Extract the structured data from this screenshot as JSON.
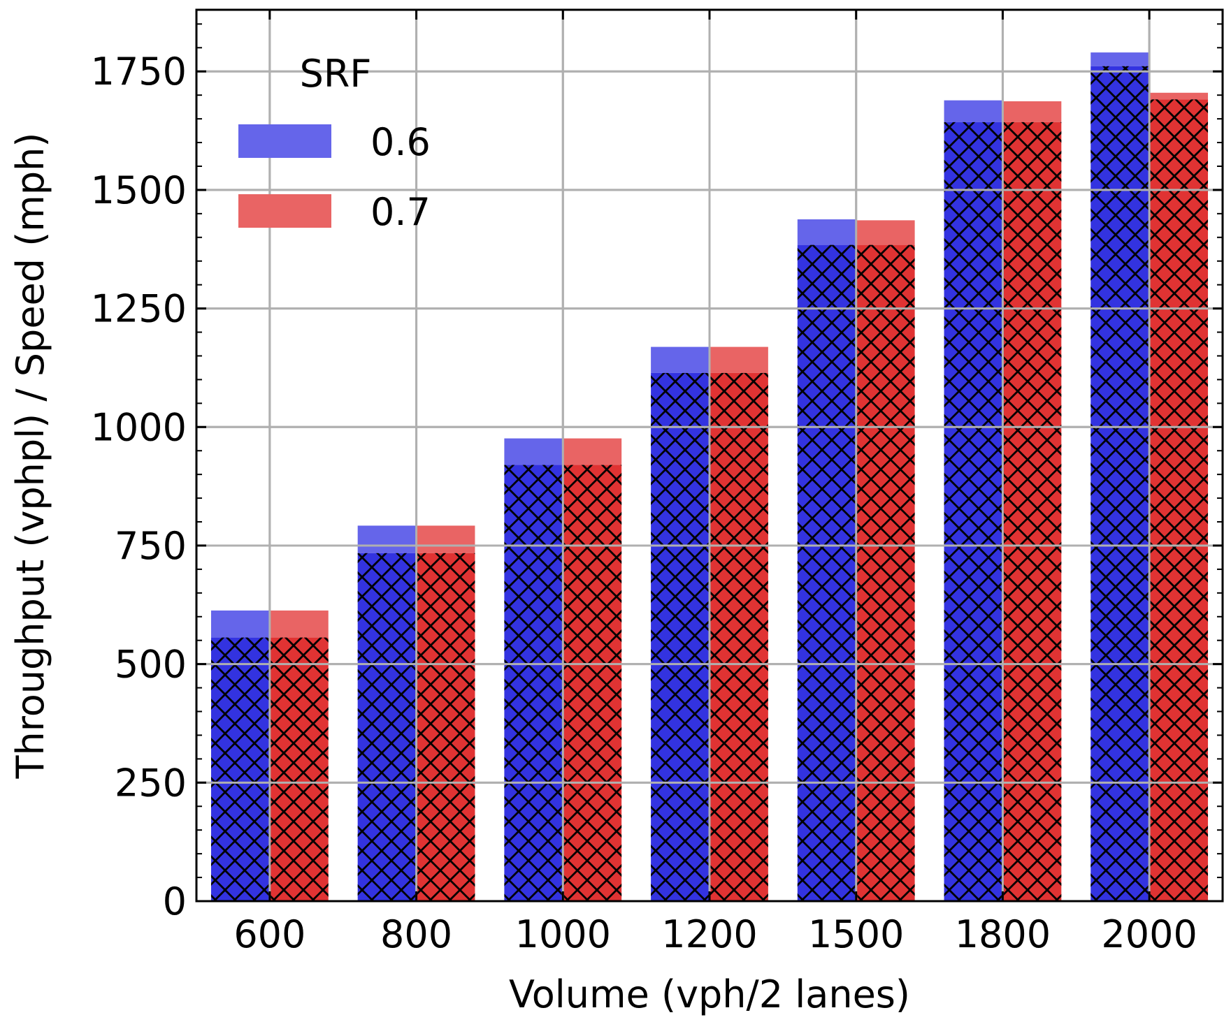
{
  "chart_data": {
    "type": "bar",
    "title": "",
    "xlabel": "Volume (vph/2 lanes)",
    "ylabel": "Throughput (vphpl) / Speed (mph)",
    "categories": [
      "600",
      "800",
      "1000",
      "1200",
      "1500",
      "1800",
      "2000"
    ],
    "ylim": [
      0,
      1880
    ],
    "yticks": [
      0,
      250,
      500,
      750,
      1000,
      1250,
      1500,
      1750
    ],
    "grid": true,
    "legend": {
      "title": "SRF",
      "placement": "top-left",
      "entries": [
        "0.6",
        "0.7"
      ]
    },
    "series": [
      {
        "name": "0.6",
        "color": "#3333e0",
        "light_color": "#6565ea",
        "throughput": [
          556,
          734,
          920,
          1114,
          1384,
          1643,
          1761
        ],
        "total": [
          613,
          792,
          976,
          1169,
          1438,
          1689,
          1790
        ]
      },
      {
        "name": "0.7",
        "color": "#e03333",
        "light_color": "#e96464",
        "throughput": [
          556,
          734,
          920,
          1114,
          1384,
          1643,
          1691
        ],
        "total": [
          613,
          792,
          976,
          1169,
          1436,
          1687,
          1705
        ]
      }
    ]
  }
}
